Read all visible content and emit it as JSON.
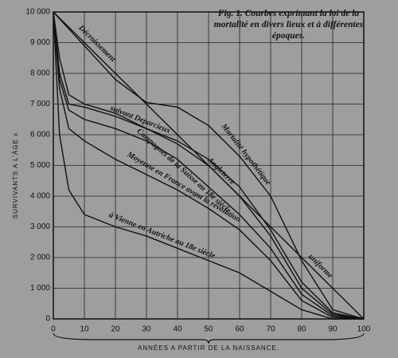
{
  "chart_data": {
    "type": "line",
    "title": "Fig. 1. Courbes exprimant la loi de la mortalité en divers lieux et à différentes époques.",
    "x_label": "ANNÉES A PARTIR DE LA NAISSANCE.",
    "y_label": "SURVIVANTS A L'ÂGE x",
    "x": [
      0,
      2,
      5,
      10,
      20,
      30,
      40,
      50,
      60,
      70,
      80,
      90,
      100
    ],
    "xlim": [
      0,
      100
    ],
    "ylim": [
      0,
      10000
    ],
    "xticks": [
      0,
      10,
      20,
      30,
      40,
      50,
      60,
      70,
      80,
      90,
      100
    ],
    "yticks": [
      0,
      {
        "value": 1000,
        "label": "1 000"
      },
      {
        "value": 2000,
        "label": "2 000"
      },
      {
        "value": 3000,
        "label": "3 000"
      },
      {
        "value": 4000,
        "label": "4 000"
      },
      {
        "value": 5000,
        "label": "5 000"
      },
      {
        "value": 6000,
        "label": "6 000"
      },
      {
        "value": 7000,
        "label": "7 000"
      },
      {
        "value": 8000,
        "label": "8 000"
      },
      {
        "value": 9000,
        "label": "9 000"
      },
      {
        "value": 10000,
        "label": "10 000"
      }
    ],
    "grid": true,
    "series": [
      {
        "labels": [
          "Décroissement",
          "uniforme"
        ],
        "color": "#111111",
        "values": [
          10000,
          9800,
          9500,
          9000,
          8000,
          7000,
          6000,
          5000,
          4000,
          3000,
          2000,
          1000,
          0
        ]
      },
      {
        "labels": [
          "Mortalité hypothétique"
        ],
        "color": "#111111",
        "values": [
          10000,
          9780,
          9450,
          8900,
          7800,
          7050,
          6900,
          6300,
          5300,
          4000,
          1900,
          300,
          0
        ]
      },
      {
        "labels": [
          "suivant Deparcieux"
        ],
        "color": "#111111",
        "values": [
          10000,
          8000,
          7000,
          6900,
          6600,
          6200,
          5800,
          5200,
          4300,
          2900,
          1200,
          200,
          0
        ]
      },
      {
        "labels": [
          "Angleterre"
        ],
        "color": "#111111",
        "values": [
          10000,
          8500,
          7300,
          7000,
          6700,
          6200,
          5700,
          5000,
          4000,
          2700,
          1000,
          150,
          0
        ]
      },
      {
        "labels": [
          "Campagnes de la Suisse au 18e siècle"
        ],
        "color": "#111111",
        "values": [
          10000,
          7800,
          6800,
          6500,
          6200,
          5800,
          5200,
          4300,
          3400,
          2300,
          800,
          100,
          0
        ]
      },
      {
        "labels": [
          "Moyenne en France avant la révolution"
        ],
        "color": "#111111",
        "values": [
          10000,
          7500,
          6200,
          5800,
          5200,
          4700,
          4200,
          3600,
          2900,
          1900,
          600,
          50,
          0
        ]
      },
      {
        "labels": [
          "à Vienne en Autriche au 18e siècle"
        ],
        "color": "#111111",
        "values": [
          10000,
          6000,
          4200,
          3400,
          3000,
          2700,
          2300,
          1900,
          1500,
          900,
          300,
          0,
          0
        ]
      }
    ]
  }
}
